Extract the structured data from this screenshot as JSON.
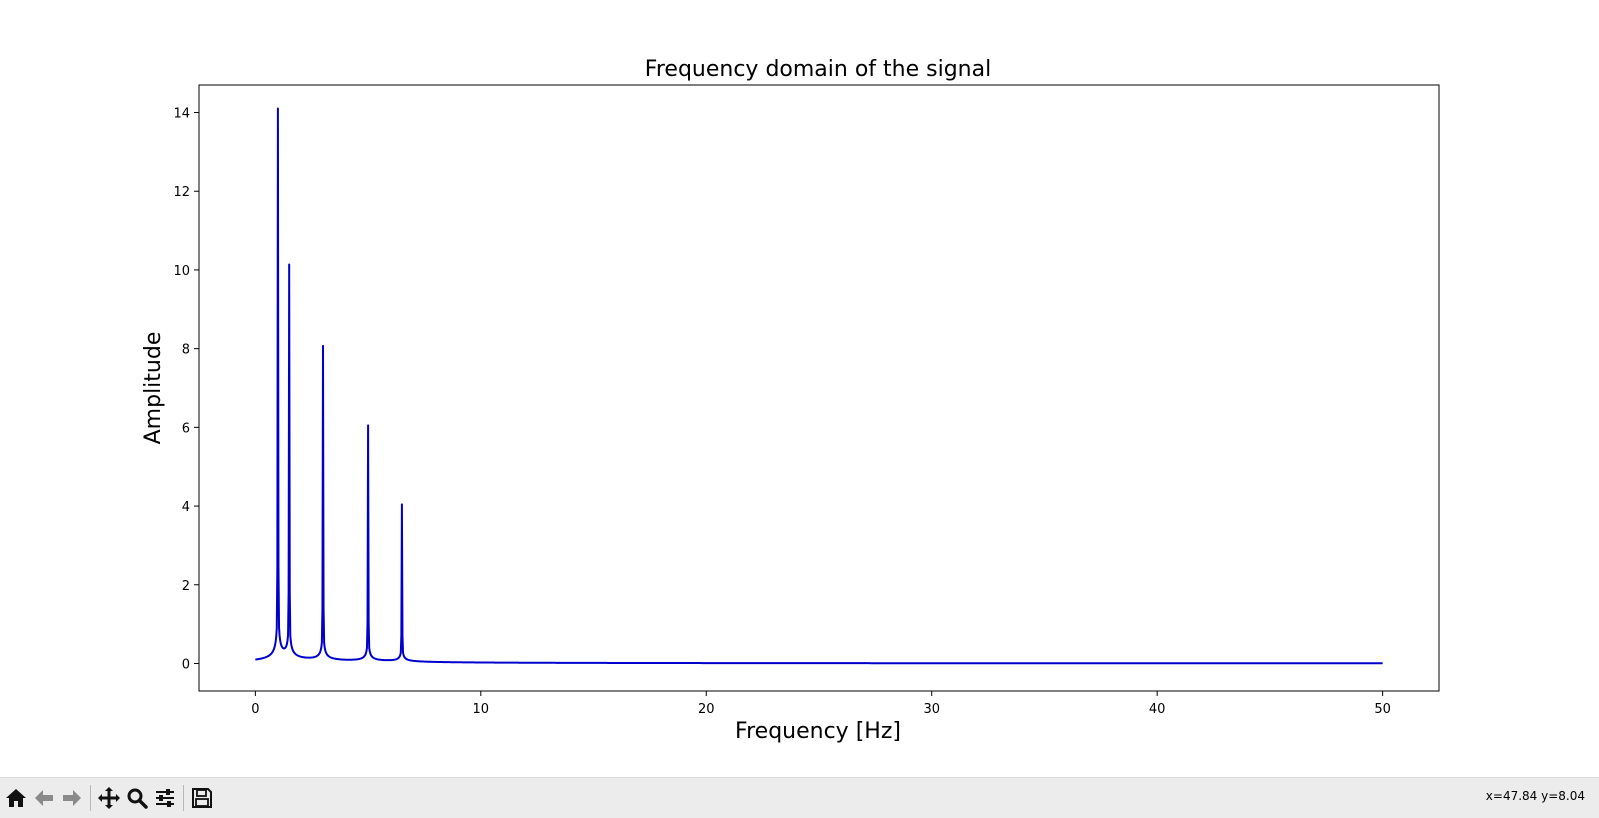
{
  "window": {
    "coords_readout": "x=47.84 y=8.04"
  },
  "toolbar": {
    "buttons": [
      {
        "name": "home-icon",
        "tooltip": "Reset original view"
      },
      {
        "name": "back-arrow-icon",
        "tooltip": "Back to previous view"
      },
      {
        "name": "forward-arrow-icon",
        "tooltip": "Forward to next view"
      },
      {
        "name": "pan-icon",
        "tooltip": "Pan axes"
      },
      {
        "name": "zoom-icon",
        "tooltip": "Zoom to rectangle"
      },
      {
        "name": "configure-subplots-icon",
        "tooltip": "Configure subplots"
      },
      {
        "name": "save-icon",
        "tooltip": "Save the figure"
      }
    ]
  },
  "chart_data": {
    "type": "line",
    "title": "Frequency domain of the signal",
    "xlabel": "Frequency [Hz]",
    "ylabel": "Amplitude",
    "xlim": [
      -2.5,
      52.5
    ],
    "ylim": [
      -0.7,
      14.7
    ],
    "xticks": [
      0,
      10,
      20,
      30,
      40,
      50
    ],
    "yticks": [
      0,
      2,
      4,
      6,
      8,
      10,
      12,
      14
    ],
    "grid": false,
    "legend": "none",
    "color": "#0000cc",
    "series": [
      {
        "peaks": [
          {
            "freq": 1.0,
            "amplitude": 14.0
          },
          {
            "freq": 1.5,
            "amplitude": 10.0
          },
          {
            "freq": 3.0,
            "amplitude": 8.0
          },
          {
            "freq": 5.0,
            "amplitude": 6.0
          },
          {
            "freq": 6.5,
            "amplitude": 4.0
          }
        ],
        "x_range": [
          0,
          50
        ]
      }
    ]
  }
}
